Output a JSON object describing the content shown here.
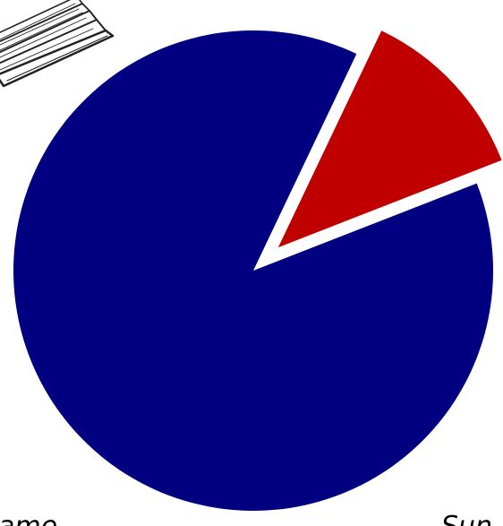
{
  "chart_data": {
    "type": "pie",
    "slices": [
      {
        "label": "",
        "value": 88,
        "color": "#000080",
        "exploded": false
      },
      {
        "label": "",
        "value": 12,
        "color": "#c00000",
        "exploded": true
      }
    ],
    "edge_text": {
      "left": "ame",
      "right": "Sun"
    },
    "decoration": "sketched-book-corner"
  }
}
